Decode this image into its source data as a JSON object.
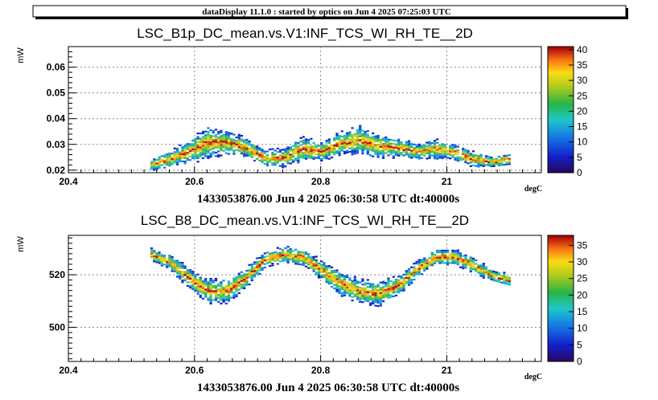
{
  "banner": "dataDisplay 11.1.0 : started by optics on Jun  4 2025 07:25:03 UTC",
  "chart_data": [
    {
      "type": "heatmap",
      "title": "LSC_B1p_DC_mean.vs.V1:INF_TCS_WI_RH_TE__2D",
      "ylabel": "mW",
      "xlabel": "degC",
      "footer": "1433053876.00 Jun 4 2025 06:30:58 UTC dt:40000s",
      "xlim": [
        20.4,
        21.15
      ],
      "ylim": [
        0.019,
        0.068
      ],
      "xticks": [
        {
          "value": 20.4,
          "label": "20.4"
        },
        {
          "value": 20.6,
          "label": "20.6"
        },
        {
          "value": 20.8,
          "label": "20.8"
        },
        {
          "value": 21.0,
          "label": "21"
        }
      ],
      "yticks": [
        {
          "value": 0.02,
          "label": "0.02"
        },
        {
          "value": 0.03,
          "label": "0.03"
        },
        {
          "value": 0.04,
          "label": "0.04"
        },
        {
          "value": 0.05,
          "label": "0.05"
        },
        {
          "value": 0.06,
          "label": "0.06"
        }
      ],
      "grid": true,
      "colorbar": {
        "range": [
          0,
          41
        ],
        "ticks": [
          0,
          5,
          10,
          15,
          20,
          25,
          30,
          35,
          40
        ]
      },
      "series": [
        {
          "x": [
            20.53,
            20.56,
            20.59,
            20.62,
            20.65,
            20.68,
            20.71,
            20.74,
            20.77,
            20.8,
            20.83,
            20.86,
            20.89,
            20.92,
            20.95,
            20.98,
            21.01,
            21.04,
            21.07,
            21.1
          ],
          "y": [
            0.0225,
            0.0245,
            0.0275,
            0.031,
            0.031,
            0.029,
            0.025,
            0.025,
            0.0285,
            0.0275,
            0.0305,
            0.032,
            0.0295,
            0.029,
            0.0275,
            0.0285,
            0.0275,
            0.0245,
            0.0235,
            0.0245
          ],
          "spread": [
            0.0015,
            0.002,
            0.003,
            0.004,
            0.003,
            0.0025,
            0.002,
            0.0025,
            0.003,
            0.0025,
            0.003,
            0.0035,
            0.003,
            0.0025,
            0.002,
            0.0025,
            0.002,
            0.002,
            0.0015,
            0.0015
          ]
        }
      ]
    },
    {
      "type": "heatmap",
      "title": "LSC_B8_DC_mean.vs.V1:INF_TCS_WI_RH_TE__2D",
      "ylabel": "mW",
      "xlabel": "degC",
      "footer": "1433053876.00 Jun 4 2025 06:30:58 UTC dt:40000s",
      "xlim": [
        20.4,
        21.15
      ],
      "ylim": [
        487,
        535
      ],
      "xticks": [
        {
          "value": 20.4,
          "label": "20.4"
        },
        {
          "value": 20.6,
          "label": "20.6"
        },
        {
          "value": 20.8,
          "label": "20.8"
        },
        {
          "value": 21.0,
          "label": "21"
        }
      ],
      "yticks": [
        {
          "value": 500,
          "label": "500"
        },
        {
          "value": 520,
          "label": "520"
        }
      ],
      "grid": true,
      "colorbar": {
        "range": [
          0,
          38
        ],
        "ticks": [
          0,
          5,
          10,
          15,
          20,
          25,
          30,
          35
        ]
      },
      "series": [
        {
          "x": [
            20.53,
            20.56,
            20.59,
            20.62,
            20.65,
            20.68,
            20.71,
            20.74,
            20.77,
            20.8,
            20.83,
            20.86,
            20.89,
            20.92,
            20.95,
            20.98,
            21.01,
            21.04,
            21.07,
            21.1
          ],
          "y": [
            528,
            525,
            519,
            514,
            514,
            519,
            526,
            528,
            527,
            522,
            517,
            514,
            513,
            516,
            522,
            527,
            527,
            524,
            520,
            518
          ],
          "spread": [
            1.5,
            2,
            2.5,
            3,
            3,
            2.5,
            2,
            2,
            2,
            2.5,
            3,
            3,
            3,
            2.5,
            2,
            2,
            2,
            2,
            1.5,
            1.5
          ]
        }
      ]
    }
  ]
}
